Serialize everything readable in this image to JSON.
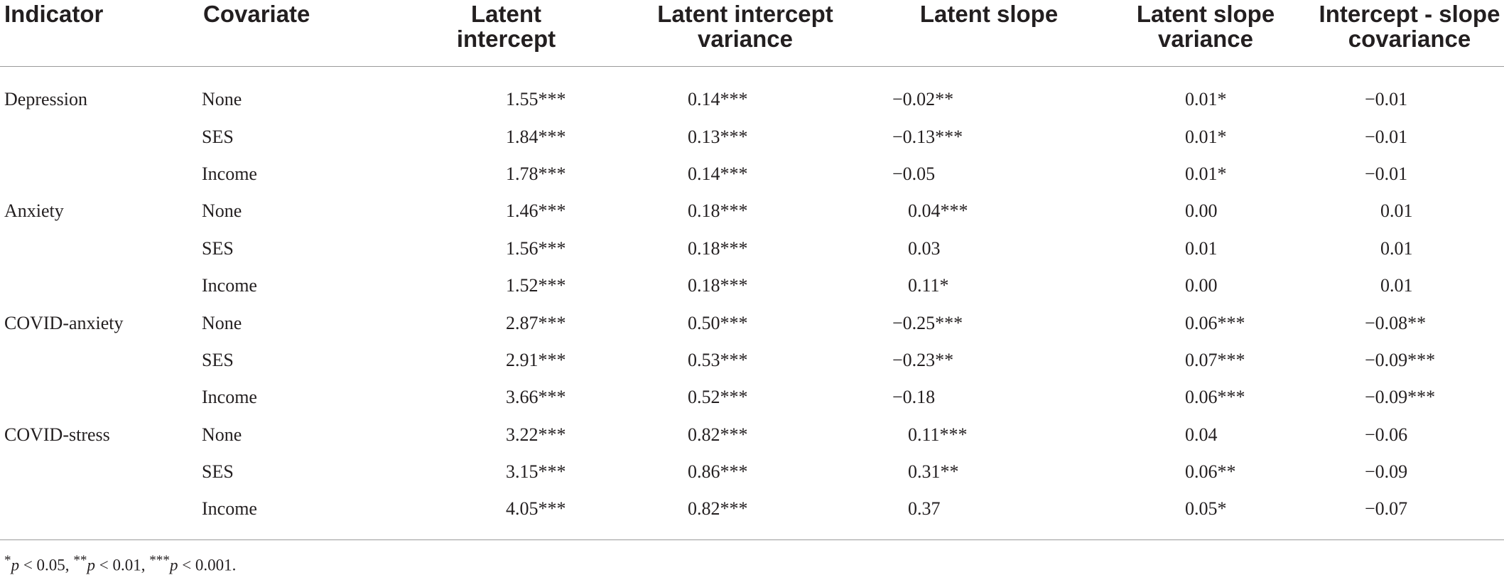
{
  "headers": {
    "indicator": "Indicator",
    "covariate": "Covariate",
    "latent_intercept_1": "Latent",
    "latent_intercept_2": "intercept",
    "latent_intercept_variance_1": "Latent intercept",
    "latent_intercept_variance_2": "variance",
    "latent_slope": "Latent slope",
    "latent_slope_variance_1": "Latent slope",
    "latent_slope_variance_2": "variance",
    "covariance_1": "Intercept - slope",
    "covariance_2": "covariance"
  },
  "rows": [
    {
      "indicator": "Depression",
      "covariate": "None",
      "intercept": "1.55***",
      "intercept_var": "0.14***",
      "slope": "−0.02**",
      "slope_var": "0.01*",
      "cov": "−0.01"
    },
    {
      "indicator": "",
      "covariate": "SES",
      "intercept": "1.84***",
      "intercept_var": "0.13***",
      "slope": "−0.13***",
      "slope_var": "0.01*",
      "cov": "−0.01"
    },
    {
      "indicator": "",
      "covariate": "Income",
      "intercept": "1.78***",
      "intercept_var": "0.14***",
      "slope": "−0.05",
      "slope_var": "0.01*",
      "cov": "−0.01"
    },
    {
      "indicator": "Anxiety",
      "covariate": "None",
      "intercept": "1.46***",
      "intercept_var": "0.18***",
      "slope": "0.04***",
      "slope_var": "0.00",
      "cov": "0.01"
    },
    {
      "indicator": "",
      "covariate": "SES",
      "intercept": "1.56***",
      "intercept_var": "0.18***",
      "slope": "0.03",
      "slope_var": "0.01",
      "cov": "0.01"
    },
    {
      "indicator": "",
      "covariate": "Income",
      "intercept": "1.52***",
      "intercept_var": "0.18***",
      "slope": "0.11*",
      "slope_var": "0.00",
      "cov": "0.01"
    },
    {
      "indicator": "COVID-anxiety",
      "covariate": "None",
      "intercept": "2.87***",
      "intercept_var": "0.50***",
      "slope": "−0.25***",
      "slope_var": "0.06***",
      "cov": "−0.08**"
    },
    {
      "indicator": "",
      "covariate": "SES",
      "intercept": "2.91***",
      "intercept_var": "0.53***",
      "slope": "−0.23**",
      "slope_var": "0.07***",
      "cov": "−0.09***"
    },
    {
      "indicator": "",
      "covariate": "Income",
      "intercept": "3.66***",
      "intercept_var": "0.52***",
      "slope": "−0.18",
      "slope_var": "0.06***",
      "cov": "−0.09***"
    },
    {
      "indicator": "COVID-stress",
      "covariate": "None",
      "intercept": "3.22***",
      "intercept_var": "0.82***",
      "slope": "0.11***",
      "slope_var": "0.04",
      "cov": "−0.06"
    },
    {
      "indicator": "",
      "covariate": "SES",
      "intercept": "3.15***",
      "intercept_var": "0.86***",
      "slope": "0.31**",
      "slope_var": "0.06**",
      "cov": "−0.09"
    },
    {
      "indicator": "",
      "covariate": "Income",
      "intercept": "4.05***",
      "intercept_var": "0.82***",
      "slope": "0.37",
      "slope_var": "0.05*",
      "cov": "−0.07"
    }
  ],
  "footnote": {
    "star1": "*",
    "p": "p",
    "t1": " < 0.05, ",
    "star2": "**",
    "t2": " < 0.01, ",
    "star3": "***",
    "t3": " < 0.001."
  }
}
